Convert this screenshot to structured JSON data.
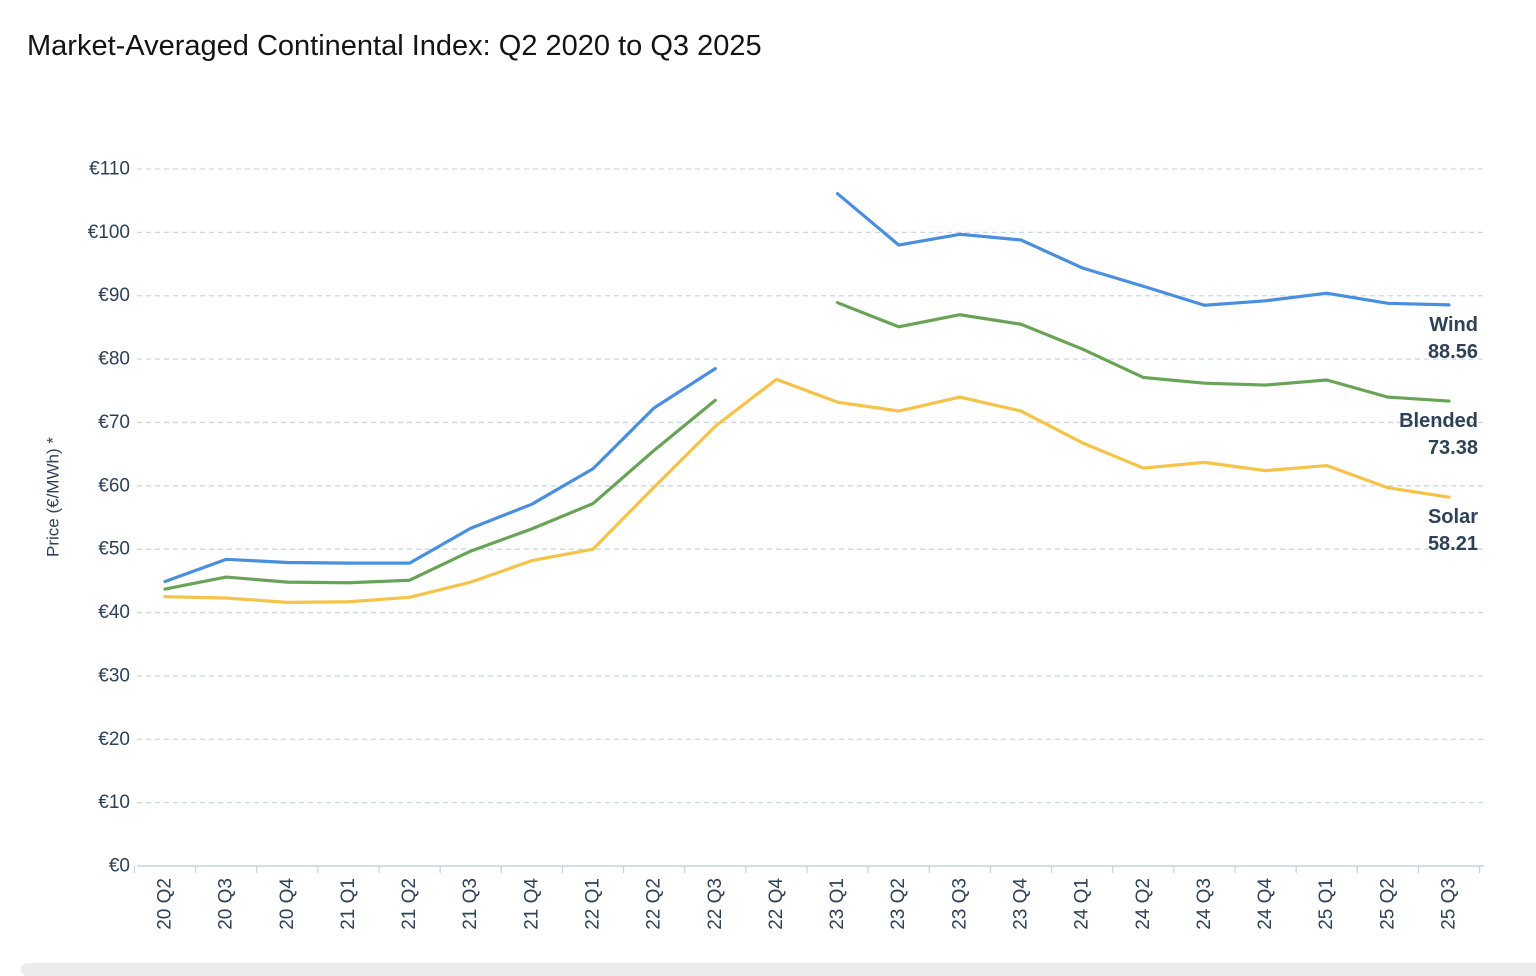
{
  "title": "Market-Averaged Continental Index: Q2 2020 to Q3 2025",
  "colors": {
    "title_text": "#141414",
    "axis_text": "#2e4156",
    "grid_line": "#ccd7e3",
    "axis_line": "#c5d2e0",
    "scrollbar": "#ececec",
    "background": "#ffffff"
  },
  "chart_data": {
    "type": "line",
    "title": "Market-Averaged Continental Index: Q2 2020 to Q3 2025",
    "xlabel": "",
    "ylabel": "Price (€/MWh) *",
    "ylim": [
      0,
      110
    ],
    "y_tick_step": 10,
    "y_tick_prefix": "€",
    "grid": "horizontal dashed gridlines, solid baseline, category ticks below axis",
    "legend_position": "right-end-of-line labels with final values",
    "categories": [
      "20 Q2",
      "20 Q3",
      "20 Q4",
      "21 Q1",
      "21 Q2",
      "21 Q3",
      "21 Q4",
      "22 Q1",
      "22 Q2",
      "22 Q3",
      "22 Q4",
      "23 Q1",
      "23 Q2",
      "23 Q3",
      "23 Q4",
      "24 Q1",
      "24 Q2",
      "24 Q3",
      "24 Q4",
      "25 Q1",
      "25 Q2",
      "25 Q3"
    ],
    "series": [
      {
        "name": "Wind",
        "color": "#4a8ee0",
        "end_label_value": "88.56",
        "values": [
          44.9,
          48.4,
          47.9,
          47.8,
          47.8,
          53.3,
          57.1,
          62.7,
          72.3,
          78.5,
          null,
          106.1,
          98.0,
          99.7,
          98.8,
          94.4,
          91.5,
          88.5,
          89.2,
          90.4,
          88.8,
          88.56
        ]
      },
      {
        "name": "Blended",
        "color": "#69a358",
        "end_label_value": "73.38",
        "values": [
          43.7,
          45.6,
          44.8,
          44.7,
          45.1,
          49.7,
          53.2,
          57.2,
          65.6,
          73.5,
          null,
          88.9,
          85.1,
          87.0,
          85.5,
          81.6,
          77.1,
          76.2,
          75.9,
          76.7,
          74.0,
          73.38
        ]
      },
      {
        "name": "Solar",
        "color": "#f5c24a",
        "end_label_value": "58.21",
        "values": [
          42.5,
          42.3,
          41.6,
          41.7,
          42.4,
          44.8,
          48.2,
          50.0,
          59.8,
          69.4,
          76.8,
          73.2,
          71.8,
          74.0,
          71.8,
          66.8,
          62.8,
          63.7,
          62.4,
          63.2,
          59.7,
          58.21
        ]
      }
    ]
  }
}
